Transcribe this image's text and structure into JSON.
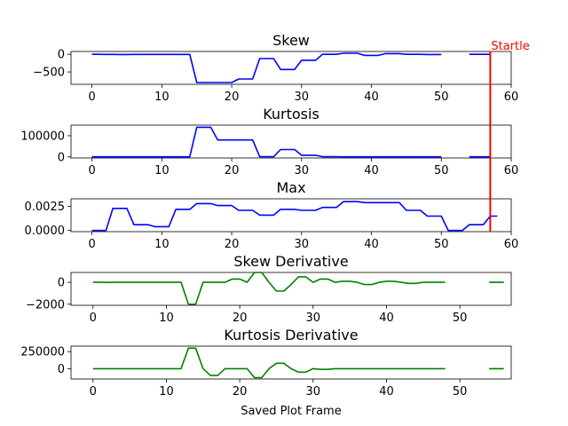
{
  "chart_data": [
    {
      "type": "line",
      "title": "Skew",
      "xlabel": "",
      "ylabel": "",
      "xlim": [
        -3,
        60
      ],
      "ylim": [
        -850,
        80
      ],
      "xticks": [
        0,
        10,
        20,
        30,
        40,
        50,
        60
      ],
      "yticks": [
        0,
        -500
      ],
      "ytick_labels": [
        "0",
        "−500"
      ],
      "color": "#0000ff",
      "series": [
        {
          "x": [
            0,
            1,
            2,
            3,
            4,
            5,
            6,
            7,
            8,
            9,
            10,
            11,
            12,
            13,
            14,
            15,
            16,
            17,
            18,
            19,
            20,
            21,
            22,
            23,
            24,
            25,
            26,
            27,
            28,
            29,
            30,
            31,
            32,
            33,
            34,
            35,
            36,
            37,
            38,
            39,
            40,
            41,
            42,
            43,
            44,
            45,
            46,
            47,
            48,
            49,
            50,
            null,
            54,
            55,
            56,
            57
          ],
          "y": [
            0,
            0,
            -3,
            -3,
            -5,
            -5,
            -3,
            -3,
            -3,
            -3,
            -3,
            -3,
            -3,
            -3,
            -3,
            -800,
            -800,
            -800,
            -800,
            -800,
            -800,
            -700,
            -700,
            -700,
            -120,
            -120,
            -120,
            -430,
            -430,
            -430,
            -170,
            -170,
            -170,
            0,
            0,
            0,
            30,
            30,
            30,
            -30,
            -30,
            -30,
            20,
            20,
            20,
            0,
            0,
            0,
            -5,
            -5,
            -5,
            null,
            0,
            0,
            0,
            0
          ]
        }
      ],
      "annotation": {
        "text": "Startle",
        "x": 57,
        "color": "#ff0000"
      }
    },
    {
      "type": "line",
      "title": "Kurtosis",
      "xlabel": "",
      "ylabel": "",
      "xlim": [
        -3,
        60
      ],
      "ylim": [
        -5000,
        150000
      ],
      "xticks": [
        0,
        10,
        20,
        30,
        40,
        50,
        60
      ],
      "yticks": [
        100000,
        0
      ],
      "ytick_labels": [
        "100000",
        "0"
      ],
      "color": "#0000ff",
      "series": [
        {
          "x": [
            0,
            1,
            2,
            3,
            4,
            5,
            6,
            7,
            8,
            9,
            10,
            11,
            12,
            13,
            14,
            15,
            16,
            17,
            18,
            19,
            20,
            21,
            22,
            23,
            24,
            25,
            26,
            27,
            28,
            29,
            30,
            31,
            32,
            33,
            34,
            35,
            36,
            37,
            38,
            39,
            40,
            41,
            42,
            43,
            44,
            45,
            46,
            47,
            48,
            49,
            50,
            null,
            54,
            55,
            56,
            57
          ],
          "y": [
            500,
            500,
            500,
            500,
            500,
            500,
            500,
            500,
            500,
            500,
            500,
            500,
            500,
            500,
            500,
            140000,
            140000,
            140000,
            80000,
            80000,
            80000,
            80000,
            80000,
            80000,
            1000,
            1000,
            1000,
            35000,
            35000,
            35000,
            8000,
            8000,
            8000,
            1000,
            1000,
            1000,
            500,
            500,
            500,
            500,
            500,
            500,
            500,
            500,
            500,
            500,
            500,
            500,
            500,
            500,
            500,
            null,
            500,
            500,
            500,
            500
          ]
        }
      ],
      "annotation": {
        "text": "",
        "x": 57,
        "color": "#ff0000"
      }
    },
    {
      "type": "line",
      "title": "Max",
      "xlabel": "",
      "ylabel": "",
      "xlim": [
        -3,
        60
      ],
      "ylim": [
        -0.00012,
        0.0033
      ],
      "xticks": [
        0,
        10,
        20,
        30,
        40,
        50,
        60
      ],
      "yticks": [
        0.0025,
        0.0
      ],
      "ytick_labels": [
        "0.0025",
        "0.0000"
      ],
      "color": "#0000ff",
      "series": [
        {
          "x": [
            0,
            1,
            2,
            3,
            4,
            5,
            6,
            7,
            8,
            9,
            10,
            11,
            12,
            13,
            14,
            15,
            16,
            17,
            18,
            19,
            20,
            21,
            22,
            23,
            24,
            25,
            26,
            27,
            28,
            29,
            30,
            31,
            32,
            33,
            34,
            35,
            36,
            37,
            38,
            39,
            40,
            41,
            42,
            43,
            44,
            45,
            46,
            47,
            48,
            49,
            50,
            51,
            52,
            53,
            54,
            55,
            56,
            57,
            58
          ],
          "y": [
            0,
            0,
            0,
            0.0023,
            0.0023,
            0.0023,
            0.0006,
            0.0006,
            0.0006,
            0.0004,
            0.0004,
            0.0004,
            0.0022,
            0.0022,
            0.0022,
            0.0028,
            0.0028,
            0.0028,
            0.0026,
            0.0026,
            0.0026,
            0.0021,
            0.0021,
            0.0021,
            0.0016,
            0.0016,
            0.0016,
            0.0022,
            0.0022,
            0.0022,
            0.0021,
            0.0021,
            0.0021,
            0.0024,
            0.0024,
            0.0024,
            0.003,
            0.003,
            0.003,
            0.0029,
            0.0029,
            0.0029,
            0.0029,
            0.0029,
            0.0029,
            0.0021,
            0.0021,
            0.0021,
            0.0015,
            0.0015,
            0.0015,
            0,
            0,
            0,
            0.0006,
            0.0006,
            0.0006,
            0.0015,
            0.0015
          ]
        }
      ],
      "annotation": {
        "text": "",
        "x": 57,
        "color": "#ff0000"
      }
    },
    {
      "type": "line",
      "title": "Skew Derivative",
      "xlabel": "",
      "ylabel": "",
      "xlim": [
        -3,
        57
      ],
      "ylim": [
        -2100,
        900
      ],
      "xticks": [
        0,
        10,
        20,
        30,
        40,
        50
      ],
      "yticks": [
        0,
        -2000
      ],
      "ytick_labels": [
        "0",
        "−2000"
      ],
      "color": "#008000",
      "series": [
        {
          "x": [
            0,
            1,
            2,
            3,
            4,
            5,
            6,
            7,
            8,
            9,
            10,
            11,
            12,
            13,
            14,
            15,
            16,
            17,
            18,
            19,
            20,
            21,
            22,
            23,
            24,
            25,
            26,
            27,
            28,
            29,
            30,
            31,
            32,
            33,
            34,
            35,
            36,
            37,
            38,
            39,
            40,
            41,
            42,
            43,
            44,
            45,
            46,
            47,
            48,
            null,
            54,
            55,
            56
          ],
          "y": [
            0,
            0,
            -5,
            0,
            0,
            5,
            0,
            0,
            0,
            0,
            0,
            0,
            0,
            -2000,
            -2000,
            0,
            0,
            0,
            0,
            300,
            300,
            0,
            900,
            900,
            0,
            -800,
            -800,
            -200,
            500,
            500,
            0,
            300,
            300,
            0,
            100,
            100,
            0,
            -200,
            -200,
            0,
            100,
            100,
            0,
            -100,
            -100,
            0,
            0,
            0,
            0,
            null,
            0,
            0,
            0
          ]
        }
      ]
    },
    {
      "type": "line",
      "title": "Kurtosis Derivative",
      "xlabel": "Saved Plot Frame",
      "ylabel": "",
      "xlim": [
        -3,
        57
      ],
      "ylim": [
        -150000,
        330000
      ],
      "xticks": [
        0,
        10,
        20,
        30,
        40,
        50
      ],
      "yticks": [
        250000,
        0
      ],
      "ytick_labels": [
        "250000",
        "0"
      ],
      "color": "#008000",
      "series": [
        {
          "x": [
            0,
            1,
            2,
            3,
            4,
            5,
            6,
            7,
            8,
            9,
            10,
            11,
            12,
            13,
            14,
            15,
            16,
            17,
            18,
            19,
            20,
            21,
            22,
            23,
            24,
            25,
            26,
            27,
            28,
            29,
            30,
            31,
            32,
            33,
            34,
            35,
            36,
            37,
            38,
            39,
            40,
            41,
            42,
            43,
            44,
            45,
            46,
            47,
            48,
            null,
            54,
            55,
            56
          ],
          "y": [
            0,
            0,
            0,
            0,
            0,
            0,
            0,
            0,
            0,
            0,
            0,
            0,
            0,
            300000,
            300000,
            0,
            -100000,
            -100000,
            0,
            0,
            0,
            0,
            -130000,
            -130000,
            0,
            80000,
            80000,
            0,
            -50000,
            -50000,
            0,
            -10000,
            -10000,
            0,
            0,
            0,
            0,
            0,
            0,
            0,
            0,
            0,
            0,
            0,
            0,
            0,
            0,
            0,
            0,
            null,
            0,
            0,
            0
          ]
        }
      ]
    }
  ]
}
